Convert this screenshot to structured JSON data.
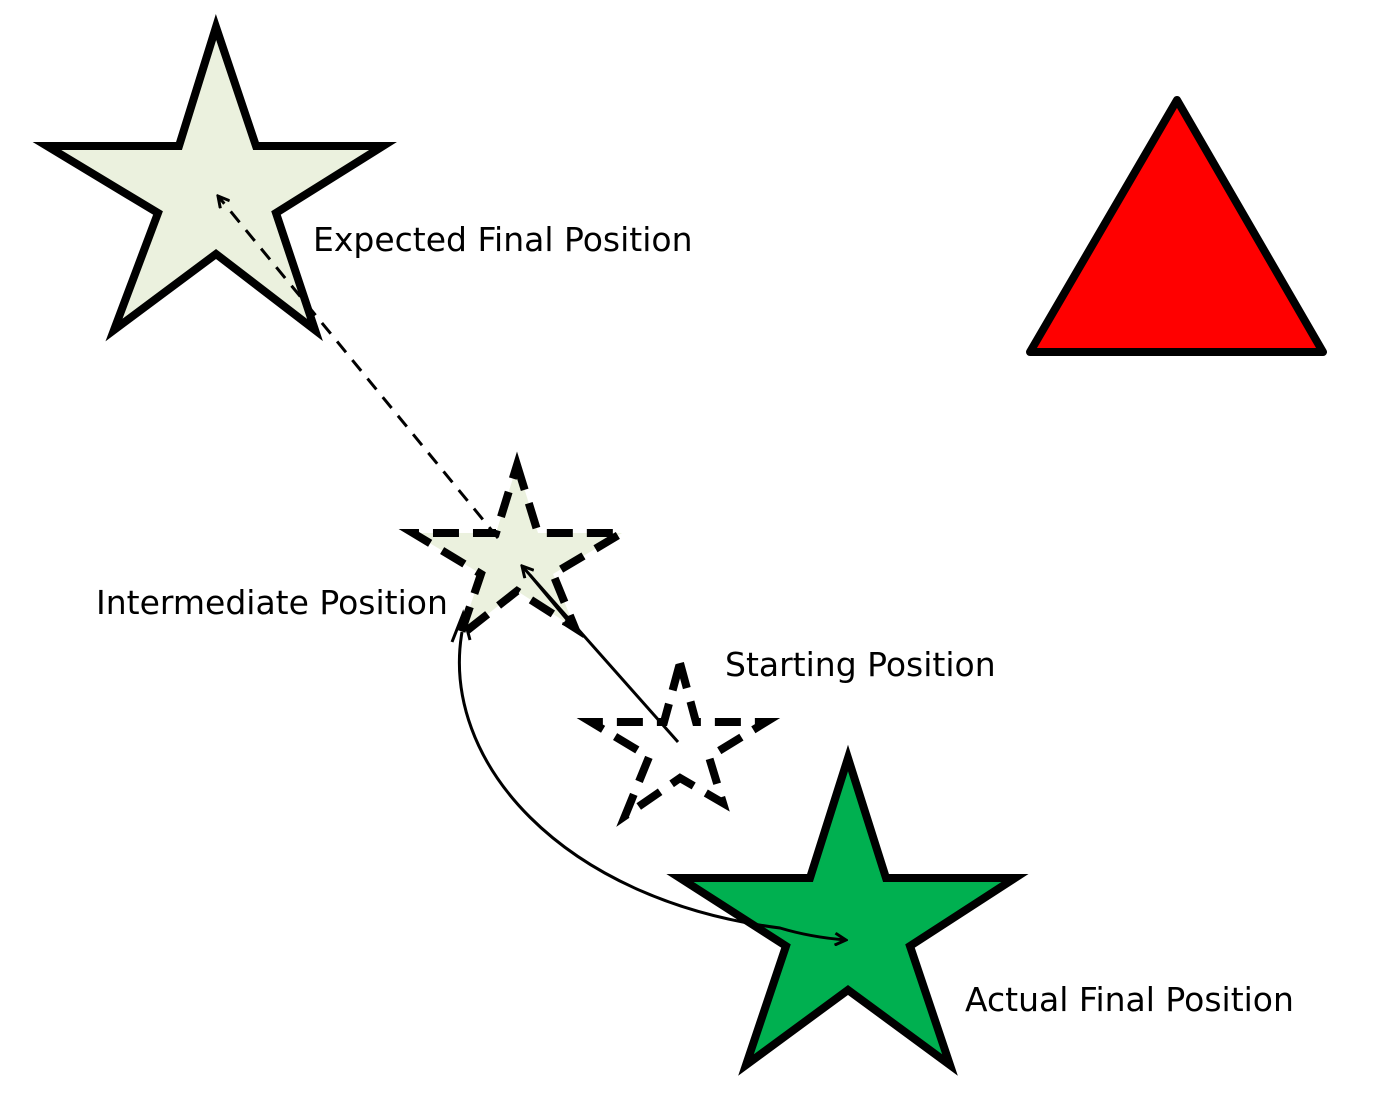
{
  "labels": {
    "expected_final": "Expected Final Position",
    "intermediate": "Intermediate Position",
    "starting": "Starting Position",
    "actual_final": "Actual Final Position"
  },
  "colors": {
    "pale_star_fill": "#EBF1DE",
    "actual_star_fill": "#00B050",
    "triangle_fill": "#FF0000",
    "stroke": "#000000",
    "background": "#FFFFFF"
  }
}
